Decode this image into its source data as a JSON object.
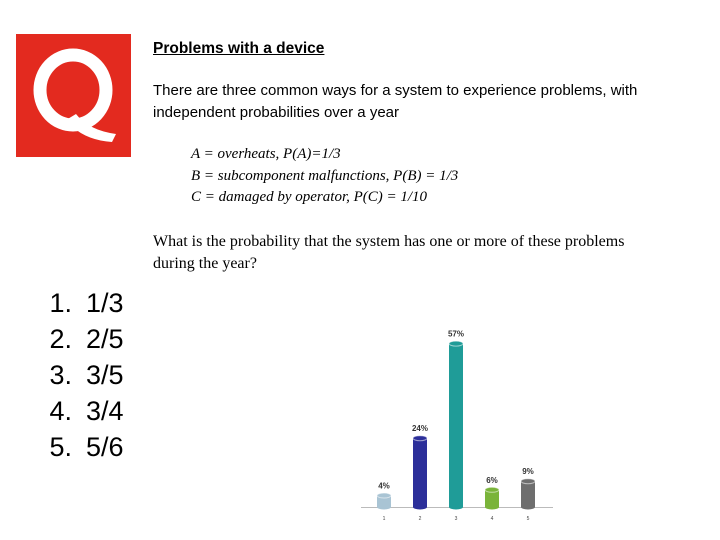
{
  "slide": {
    "logo_letter": "Q",
    "brand_color": "#e32a1f",
    "title": "Problems with a device",
    "intro": "There are three common ways for a system to experience problems, with independent probabilities over a year",
    "definitions": [
      "A = overheats, P(A)=1/3",
      "B = subcomponent malfunctions, P(B) = 1/3",
      "C = damaged by operator, P(C) = 1/10"
    ],
    "question": "What is the probability that the system has one or more of these problems during the year?"
  },
  "answers": [
    {
      "number": "1.",
      "text": "1/3"
    },
    {
      "number": "2.",
      "text": "2/5"
    },
    {
      "number": "3.",
      "text": "3/5"
    },
    {
      "number": "4.",
      "text": "3/4"
    },
    {
      "number": "5.",
      "text": "5/6"
    }
  ],
  "chart_data": {
    "type": "bar",
    "categories": [
      "1",
      "2",
      "3",
      "4",
      "5"
    ],
    "values": [
      4,
      24,
      57,
      6,
      9
    ],
    "labels": [
      "4%",
      "24%",
      "57%",
      "6%",
      "9%"
    ],
    "colors": [
      "#a9c4d4",
      "#2c2f9a",
      "#1f9c98",
      "#7ab43a",
      "#6e6e6e"
    ],
    "ylim": [
      0,
      60
    ],
    "grid": false
  }
}
